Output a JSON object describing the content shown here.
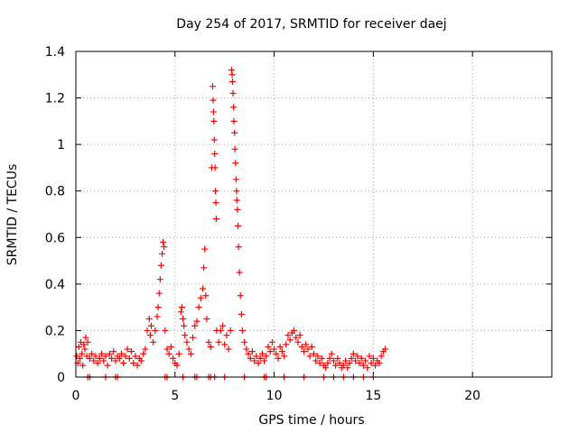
{
  "chart_data": {
    "type": "scatter",
    "title": "Day 254 of 2017, SRMTID for receiver daej",
    "xlabel": "GPS time / hours",
    "ylabel": "SRMTID / TECUs",
    "xlim": [
      0,
      24
    ],
    "ylim": [
      0,
      1.4
    ],
    "x_ticks": [
      0,
      5,
      10,
      15,
      20
    ],
    "y_ticks": [
      0,
      0.2,
      0.4,
      0.6,
      0.8,
      1,
      1.2,
      1.4
    ],
    "x_tick_labels": [
      "0",
      "5",
      "10",
      "15",
      "20"
    ],
    "y_tick_labels": [
      "0",
      "0.2",
      "0.4",
      "0.6",
      "0.8",
      "1",
      "1.2",
      "1.4"
    ],
    "grid": true,
    "marker": "+",
    "color": "#ff0000",
    "series": [
      {
        "name": "SRMTID",
        "points": [
          [
            0.05,
            0.09
          ],
          [
            0.1,
            0.06
          ],
          [
            0.15,
            0.13
          ],
          [
            0.2,
            0.08
          ],
          [
            0.25,
            0.15
          ],
          [
            0.3,
            0.1
          ],
          [
            0.35,
            0.05
          ],
          [
            0.4,
            0.14
          ],
          [
            0.45,
            0.12
          ],
          [
            0.5,
            0.17
          ],
          [
            0.55,
            0.09
          ],
          [
            0.6,
            0.15
          ],
          [
            0.7,
            0.08
          ],
          [
            0.8,
            0.1
          ],
          [
            0.9,
            0.07
          ],
          [
            1.0,
            0.09
          ],
          [
            1.1,
            0.06
          ],
          [
            1.2,
            0.08
          ],
          [
            1.3,
            0.1
          ],
          [
            1.4,
            0.07
          ],
          [
            1.5,
            0.09
          ],
          [
            1.6,
            0.05
          ],
          [
            1.7,
            0.1
          ],
          [
            1.8,
            0.08
          ],
          [
            1.9,
            0.11
          ],
          [
            2.0,
            0.07
          ],
          [
            2.1,
            0.09
          ],
          [
            2.2,
            0.08
          ],
          [
            2.3,
            0.1
          ],
          [
            2.4,
            0.06
          ],
          [
            2.5,
            0.09
          ],
          [
            2.6,
            0.12
          ],
          [
            2.7,
            0.08
          ],
          [
            2.8,
            0.11
          ],
          [
            2.9,
            0.06
          ],
          [
            3.0,
            0.09
          ],
          [
            3.1,
            0.05
          ],
          [
            3.2,
            0.08
          ],
          [
            3.3,
            0.07
          ],
          [
            3.4,
            0.1
          ],
          [
            3.5,
            0.12
          ],
          [
            3.6,
            0.2
          ],
          [
            3.7,
            0.25
          ],
          [
            3.75,
            0.18
          ],
          [
            3.8,
            0.22
          ],
          [
            3.9,
            0.15
          ],
          [
            4.0,
            0.2
          ],
          [
            4.1,
            0.26
          ],
          [
            4.15,
            0.3
          ],
          [
            4.2,
            0.36
          ],
          [
            4.25,
            0.42
          ],
          [
            4.3,
            0.48
          ],
          [
            4.35,
            0.53
          ],
          [
            4.4,
            0.58
          ],
          [
            4.45,
            0.56
          ],
          [
            4.5,
            0.2
          ],
          [
            4.6,
            0.12
          ],
          [
            4.7,
            0.1
          ],
          [
            4.8,
            0.13
          ],
          [
            4.9,
            0.08
          ],
          [
            5.0,
            0.06
          ],
          [
            5.1,
            0.05
          ],
          [
            5.2,
            0.1
          ],
          [
            5.3,
            0.28
          ],
          [
            5.35,
            0.3
          ],
          [
            5.4,
            0.25
          ],
          [
            5.45,
            0.22
          ],
          [
            5.5,
            0.18
          ],
          [
            5.6,
            0.15
          ],
          [
            5.7,
            0.12
          ],
          [
            5.8,
            0.1
          ],
          [
            5.9,
            0.17
          ],
          [
            6.0,
            0.22
          ],
          [
            6.1,
            0.24
          ],
          [
            6.2,
            0.3
          ],
          [
            6.3,
            0.34
          ],
          [
            6.4,
            0.38
          ],
          [
            6.45,
            0.47
          ],
          [
            6.5,
            0.55
          ],
          [
            6.55,
            0.35
          ],
          [
            6.6,
            0.25
          ],
          [
            6.7,
            0.15
          ],
          [
            6.8,
            0.13
          ],
          [
            6.85,
            0.9
          ],
          [
            6.9,
            1.25
          ],
          [
            6.92,
            1.19
          ],
          [
            6.94,
            1.14
          ],
          [
            6.96,
            1.1
          ],
          [
            6.98,
            1.02
          ],
          [
            7.0,
            0.96
          ],
          [
            7.02,
            0.9
          ],
          [
            7.04,
            0.8
          ],
          [
            7.06,
            0.75
          ],
          [
            7.08,
            0.68
          ],
          [
            7.1,
            0.2
          ],
          [
            7.2,
            0.15
          ],
          [
            7.3,
            0.2
          ],
          [
            7.4,
            0.22
          ],
          [
            7.5,
            0.14
          ],
          [
            7.6,
            0.18
          ],
          [
            7.7,
            0.12
          ],
          [
            7.8,
            0.2
          ],
          [
            7.85,
            1.32
          ],
          [
            7.88,
            1.3
          ],
          [
            7.9,
            1.27
          ],
          [
            7.92,
            1.22
          ],
          [
            7.95,
            1.16
          ],
          [
            7.97,
            1.1
          ],
          [
            8.0,
            1.05
          ],
          [
            8.02,
            0.98
          ],
          [
            8.05,
            0.92
          ],
          [
            8.08,
            0.85
          ],
          [
            8.1,
            0.8
          ],
          [
            8.12,
            0.76
          ],
          [
            8.15,
            0.72
          ],
          [
            8.18,
            0.65
          ],
          [
            8.2,
            0.56
          ],
          [
            8.25,
            0.45
          ],
          [
            8.3,
            0.35
          ],
          [
            8.35,
            0.27
          ],
          [
            8.4,
            0.2
          ],
          [
            8.5,
            0.15
          ],
          [
            8.6,
            0.12
          ],
          [
            8.7,
            0.1
          ],
          [
            8.8,
            0.08
          ],
          [
            8.9,
            0.11
          ],
          [
            9.0,
            0.07
          ],
          [
            9.1,
            0.09
          ],
          [
            9.2,
            0.06
          ],
          [
            9.3,
            0.08
          ],
          [
            9.4,
            0.1
          ],
          [
            9.5,
            0.07
          ],
          [
            9.6,
            0.09
          ],
          [
            9.7,
            0.13
          ],
          [
            9.8,
            0.11
          ],
          [
            9.9,
            0.15
          ],
          [
            10.0,
            0.12
          ],
          [
            10.1,
            0.1
          ],
          [
            10.2,
            0.08
          ],
          [
            10.3,
            0.13
          ],
          [
            10.4,
            0.11
          ],
          [
            10.5,
            0.09
          ],
          [
            10.6,
            0.14
          ],
          [
            10.7,
            0.18
          ],
          [
            10.8,
            0.16
          ],
          [
            10.9,
            0.19
          ],
          [
            11.0,
            0.2
          ],
          [
            11.1,
            0.17
          ],
          [
            11.2,
            0.15
          ],
          [
            11.3,
            0.18
          ],
          [
            11.4,
            0.13
          ],
          [
            11.5,
            0.11
          ],
          [
            11.6,
            0.14
          ],
          [
            11.7,
            0.12
          ],
          [
            11.8,
            0.09
          ],
          [
            11.9,
            0.13
          ],
          [
            12.0,
            0.1
          ],
          [
            12.1,
            0.07
          ],
          [
            12.2,
            0.09
          ],
          [
            12.3,
            0.06
          ],
          [
            12.4,
            0.08
          ],
          [
            12.5,
            0.05
          ],
          [
            12.6,
            0.04
          ],
          [
            12.7,
            0.06
          ],
          [
            12.8,
            0.08
          ],
          [
            12.9,
            0.1
          ],
          [
            13.0,
            0.07
          ],
          [
            13.1,
            0.05
          ],
          [
            13.2,
            0.08
          ],
          [
            13.3,
            0.06
          ],
          [
            13.4,
            0.04
          ],
          [
            13.5,
            0.05
          ],
          [
            13.6,
            0.07
          ],
          [
            13.7,
            0.04
          ],
          [
            13.8,
            0.06
          ],
          [
            13.9,
            0.08
          ],
          [
            14.0,
            0.1
          ],
          [
            14.1,
            0.07
          ],
          [
            14.2,
            0.09
          ],
          [
            14.3,
            0.06
          ],
          [
            14.4,
            0.08
          ],
          [
            14.5,
            0.05
          ],
          [
            14.6,
            0.07
          ],
          [
            14.7,
            0.04
          ],
          [
            14.8,
            0.09
          ],
          [
            14.9,
            0.06
          ],
          [
            15.0,
            0.08
          ],
          [
            15.1,
            0.05
          ],
          [
            15.2,
            0.07
          ],
          [
            15.3,
            0.06
          ],
          [
            15.4,
            0.09
          ],
          [
            15.5,
            0.11
          ],
          [
            15.6,
            0.12
          ],
          [
            0.6,
            0
          ],
          [
            0.7,
            0
          ],
          [
            1.5,
            0
          ],
          [
            2.0,
            0
          ],
          [
            2.1,
            0
          ],
          [
            4.5,
            0
          ],
          [
            4.6,
            0
          ],
          [
            5.4,
            0
          ],
          [
            6.0,
            0
          ],
          [
            6.1,
            0
          ],
          [
            6.7,
            0
          ],
          [
            6.8,
            0
          ],
          [
            7.0,
            0
          ],
          [
            7.5,
            0
          ],
          [
            8.5,
            0
          ],
          [
            9.5,
            0
          ],
          [
            9.6,
            0
          ],
          [
            10.5,
            0
          ],
          [
            11.5,
            0
          ],
          [
            12.5,
            0
          ],
          [
            13.0,
            0
          ],
          [
            13.5,
            0
          ],
          [
            14.0,
            0
          ],
          [
            14.5,
            0
          ],
          [
            15.0,
            0
          ]
        ]
      }
    ]
  }
}
